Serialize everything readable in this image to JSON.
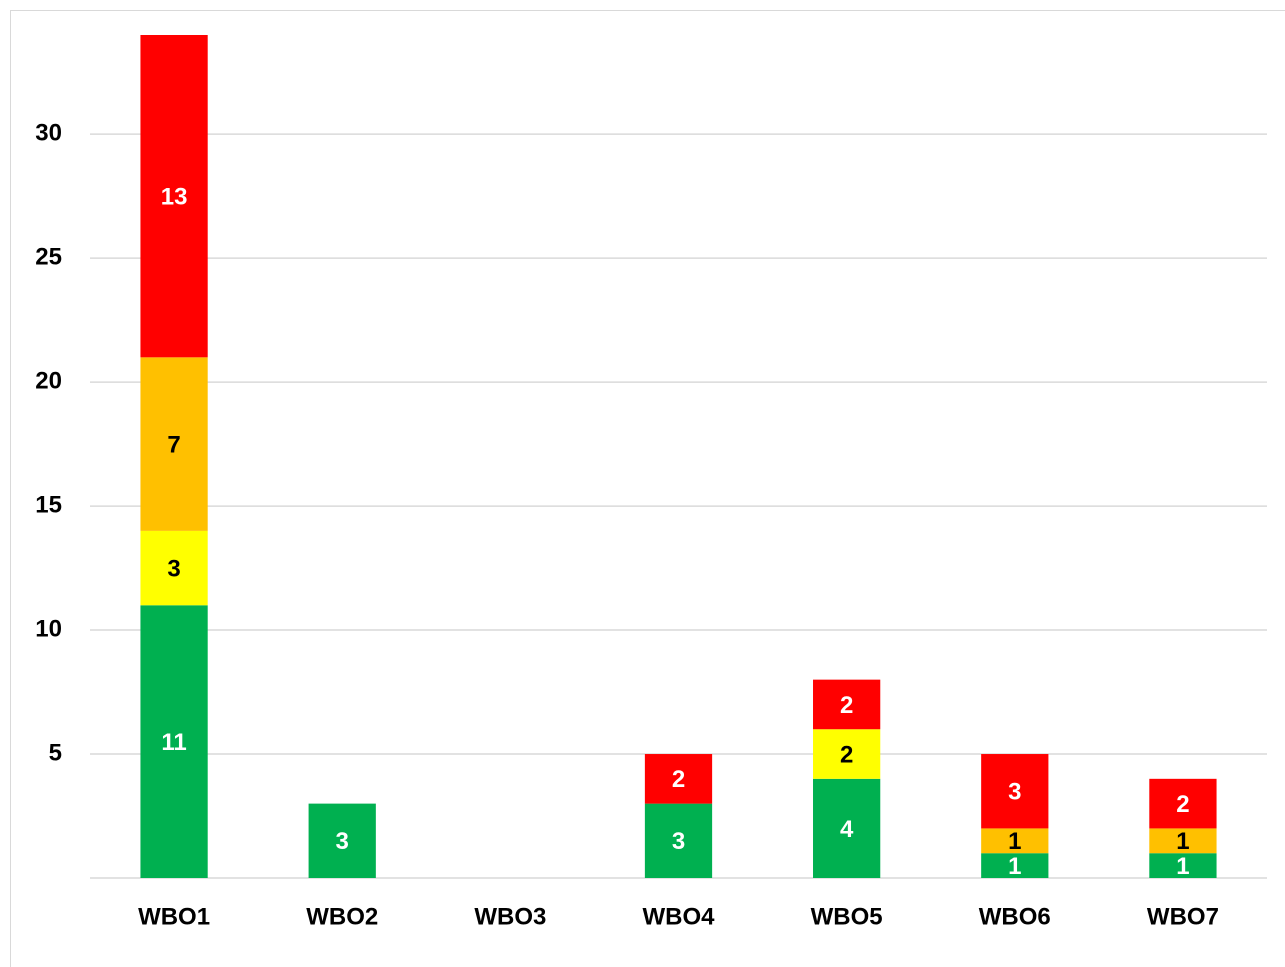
{
  "chart_data": {
    "type": "stacked_bar",
    "categories": [
      "WBO1",
      "WBO2",
      "WBO3",
      "WBO4",
      "WBO5",
      "WBO6",
      "WBO7"
    ],
    "series": [
      {
        "color": "#00b050",
        "label_color": "#ffffff",
        "values": [
          11,
          3,
          null,
          3,
          4,
          1,
          1
        ]
      },
      {
        "color": "#ffff00",
        "label_color": "#000000",
        "values": [
          3,
          null,
          null,
          null,
          2,
          null,
          null
        ]
      },
      {
        "color": "#ffc000",
        "label_color": "#000000",
        "values": [
          7,
          null,
          null,
          null,
          null,
          1,
          1
        ]
      },
      {
        "color": "#ff0000",
        "label_color": "#ffffff",
        "values": [
          13,
          null,
          null,
          2,
          2,
          3,
          2
        ]
      }
    ],
    "ylim": [
      0,
      34
    ],
    "yticks": [
      5,
      10,
      15,
      20,
      25,
      30
    ],
    "grid": true
  }
}
